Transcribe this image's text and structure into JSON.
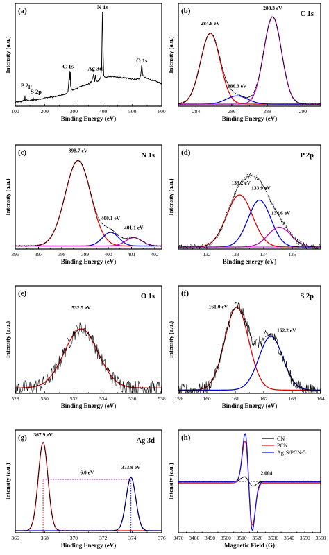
{
  "chart_data": [
    {
      "panel": "(a)",
      "type": "line",
      "xlabel": "Binding Energy (eV)",
      "ylabel": "Intensity (a.u.)",
      "xlim": [
        100,
        600
      ],
      "ylim": [
        0,
        1
      ],
      "x_reversed": false,
      "grid": false,
      "xticks": [
        100,
        200,
        300,
        400,
        500,
        600
      ],
      "peaks": [
        {
          "label": "P 2p",
          "x": 133,
          "y": 0.1
        },
        {
          "label": "S 2p",
          "x": 162,
          "y": 0.08
        },
        {
          "label": "C 1s",
          "x": 285,
          "y": 0.34
        },
        {
          "label": "Ag 3d",
          "x": 368,
          "y": 0.32
        },
        {
          "label": "N 1s",
          "x": 398,
          "y": 0.92
        },
        {
          "label": "O 1s",
          "x": 532,
          "y": 0.4
        }
      ],
      "series": [
        {
          "color": "#000000",
          "x": [
            100,
            120,
            132,
            133,
            134,
            145,
            158,
            161,
            162,
            163,
            175,
            200,
            230,
            260,
            275,
            280,
            283,
            284,
            285,
            286,
            287,
            288,
            289,
            292,
            300,
            330,
            355,
            362,
            365,
            367,
            368,
            369,
            371,
            373,
            374,
            375,
            377,
            385,
            392,
            395,
            397,
            398,
            399,
            400,
            402,
            405,
            420,
            450,
            490,
            510,
            525,
            528,
            530,
            531,
            532,
            533,
            534,
            536,
            540,
            560,
            580,
            600
          ],
          "y": [
            0.04,
            0.045,
            0.06,
            0.1,
            0.06,
            0.055,
            0.06,
            0.08,
            0.07,
            0.06,
            0.065,
            0.08,
            0.09,
            0.11,
            0.12,
            0.14,
            0.25,
            0.3,
            0.34,
            0.28,
            0.25,
            0.33,
            0.2,
            0.16,
            0.16,
            0.2,
            0.22,
            0.25,
            0.28,
            0.3,
            0.32,
            0.3,
            0.24,
            0.27,
            0.3,
            0.28,
            0.24,
            0.25,
            0.28,
            0.4,
            0.8,
            0.92,
            0.8,
            0.5,
            0.3,
            0.28,
            0.29,
            0.28,
            0.27,
            0.26,
            0.27,
            0.3,
            0.35,
            0.38,
            0.4,
            0.37,
            0.33,
            0.3,
            0.28,
            0.26,
            0.24,
            0.22
          ]
        }
      ]
    },
    {
      "panel": "(b)",
      "title": "C 1s",
      "type": "line",
      "xlabel": "Binding Energy (eV)",
      "ylabel": "Intensity (a.u.)",
      "xlim": [
        283,
        291
      ],
      "ylim": [
        0,
        1
      ],
      "grid": false,
      "xticks": [
        284,
        286,
        288,
        290
      ],
      "annotations": [
        {
          "text": "284.8 eV",
          "x": 284.8,
          "y": 0.79
        },
        {
          "text": "286.3 eV",
          "x": 286.3,
          "y": 0.18
        },
        {
          "text": "288.3 eV",
          "x": 288.3,
          "y": 0.94
        }
      ],
      "baseline": {
        "color": "#e000e0",
        "y": 0.02
      },
      "peaks": [
        {
          "center": 284.8,
          "height": 0.69,
          "sigma": 0.55,
          "color": "#e00000"
        },
        {
          "center": 286.3,
          "height": 0.08,
          "sigma": 0.6,
          "color": "#0000e0"
        },
        {
          "center": 288.3,
          "height": 0.85,
          "sigma": 0.5,
          "color": "#c000c0"
        }
      ],
      "envelope": true,
      "noise": 0.008
    },
    {
      "panel": "(c)",
      "title": "N 1s",
      "type": "line",
      "xlabel": "Binding Energy (eV)",
      "ylabel": "Intensity (a.u.)",
      "xlim": [
        396,
        402.3
      ],
      "ylim": [
        0,
        1
      ],
      "grid": false,
      "xticks": [
        396,
        397,
        398,
        399,
        400,
        401,
        402
      ],
      "annotations": [
        {
          "text": "398.7 eV",
          "x": 398.7,
          "y": 0.93
        },
        {
          "text": "400.1 eV",
          "x": 400.1,
          "y": 0.28
        },
        {
          "text": "401.1 eV",
          "x": 401.1,
          "y": 0.19
        }
      ],
      "baseline": {
        "color": "#e000e0",
        "y": 0.03
      },
      "peaks": [
        {
          "center": 398.7,
          "height": 0.82,
          "sigma": 0.55,
          "color": "#e00000"
        },
        {
          "center": 400.1,
          "height": 0.13,
          "sigma": 0.35,
          "color": "#0000e0"
        },
        {
          "center": 401.1,
          "height": 0.08,
          "sigma": 0.35,
          "color": "#c000c0"
        }
      ],
      "envelope": true,
      "noise": 0.006
    },
    {
      "panel": "(d)",
      "title": "P 2p",
      "type": "line",
      "xlabel": "Binding energy (eV)",
      "ylabel": "Intensity (a.u.)",
      "xlim": [
        131,
        136
      ],
      "ylim": [
        0,
        1
      ],
      "grid": false,
      "xticks": [
        132,
        133,
        134,
        135
      ],
      "annotations": [
        {
          "text": "133.2 eV",
          "x": 133.2,
          "y": 0.62
        },
        {
          "text": "133.9 eV",
          "x": 133.9,
          "y": 0.57
        },
        {
          "text": "134.6 eV",
          "x": 134.6,
          "y": 0.33
        }
      ],
      "baseline": {
        "color": "#e000e0",
        "y": 0.02
      },
      "peaks": [
        {
          "center": 133.15,
          "height": 0.5,
          "sigma": 0.45,
          "color": "#e00000"
        },
        {
          "center": 133.85,
          "height": 0.45,
          "sigma": 0.4,
          "color": "#0000e0"
        },
        {
          "center": 134.55,
          "height": 0.19,
          "sigma": 0.4,
          "color": "#c000c0"
        }
      ],
      "envelope": true,
      "noise": 0.025
    },
    {
      "panel": "(e)",
      "title": "O 1s",
      "type": "line",
      "xlabel": "Binding Energy (eV)",
      "ylabel": "Intensity (a.u.)",
      "xlim": [
        528,
        538
      ],
      "ylim": [
        0,
        1
      ],
      "grid": false,
      "xticks": [
        528,
        530,
        532,
        534,
        536,
        538
      ],
      "annotations": [
        {
          "text": "532.5 eV",
          "x": 532.5,
          "y": 0.78
        }
      ],
      "peaks": [
        {
          "center": 532.5,
          "height": 0.55,
          "sigma": 1.15,
          "color": "#e00000"
        }
      ],
      "offset": 0.05,
      "envelope": false,
      "noise": 0.07
    },
    {
      "panel": "(f)",
      "title": "S 2p",
      "type": "line",
      "xlabel": "Binding Energy (eV)",
      "ylabel": "Intensity (a.u.)",
      "xlim": [
        159,
        164
      ],
      "ylim": [
        0,
        1
      ],
      "grid": false,
      "xticks": [
        159,
        160,
        161,
        162,
        163,
        164
      ],
      "annotations": [
        {
          "text": "161.0 eV",
          "x": 160.4,
          "y": 0.79
        },
        {
          "text": "162.2 eV",
          "x": 162.8,
          "y": 0.57
        }
      ],
      "peaks": [
        {
          "center": 161.05,
          "height": 0.77,
          "sigma": 0.42,
          "color": "#e00000"
        },
        {
          "center": 162.25,
          "height": 0.5,
          "sigma": 0.42,
          "color": "#0000e0"
        }
      ],
      "offset": 0.03,
      "envelope": true,
      "noise": 0.06
    },
    {
      "panel": "(g)",
      "title": "Ag 3d",
      "type": "line",
      "xlabel": "Binding Energy (eV)",
      "ylabel": "Intensity (a.u.)",
      "xlim": [
        366,
        376
      ],
      "ylim": [
        0,
        1
      ],
      "grid": false,
      "xticks": [
        366,
        368,
        370,
        372,
        374,
        376
      ],
      "annotations": [
        {
          "text": "367.9 eV",
          "x": 367.9,
          "y": 0.94
        },
        {
          "text": "373.9 eV",
          "x": 373.9,
          "y": 0.62
        },
        {
          "text": "6.0 eV",
          "x": 370.9,
          "y": 0.57
        }
      ],
      "peaks": [
        {
          "center": 367.9,
          "height": 0.86,
          "sigma": 0.33,
          "color": "#e00000"
        },
        {
          "center": 373.9,
          "height": 0.52,
          "sigma": 0.33,
          "color": "#0000e0"
        }
      ],
      "offset": 0.02,
      "envelope": true,
      "noise": 0.004,
      "splitting": {
        "from": 367.9,
        "to": 373.9,
        "y": 0.52,
        "value": 6.0
      }
    },
    {
      "panel": "(h)",
      "type": "line",
      "xlabel": "Magnetic Field (G)",
      "ylabel": "Intensity (a.u.)",
      "xlim": [
        3470,
        3560
      ],
      "ylim": [
        -1,
        1
      ],
      "grid": false,
      "xticks": [
        3470,
        3480,
        3490,
        3500,
        3510,
        3520,
        3530,
        3540,
        3550,
        3560
      ],
      "annotations": [
        {
          "text": "2.004",
          "x": 3522,
          "y": 0.13
        }
      ],
      "legend_position": "top-right",
      "series": [
        {
          "name": "CN",
          "color": "#000000",
          "center": 3514.5,
          "amplitude": 0.09,
          "width": 2.8,
          "baseline": 0.0,
          "dashed_baseline": true
        },
        {
          "name": "PCN",
          "color": "#e02020",
          "center": 3514.5,
          "amplitude": 0.82,
          "width": 2.4,
          "baseline": 0.0
        },
        {
          "name": "Ag2S/PCN-5",
          "name_sub": {
            "base": "Ag",
            "sub": "2",
            "rest": "S/PCN-5"
          },
          "color": "#1010e0",
          "center": 3514.5,
          "amplitude": 0.94,
          "width": 2.3,
          "baseline": 0.0
        }
      ]
    }
  ]
}
